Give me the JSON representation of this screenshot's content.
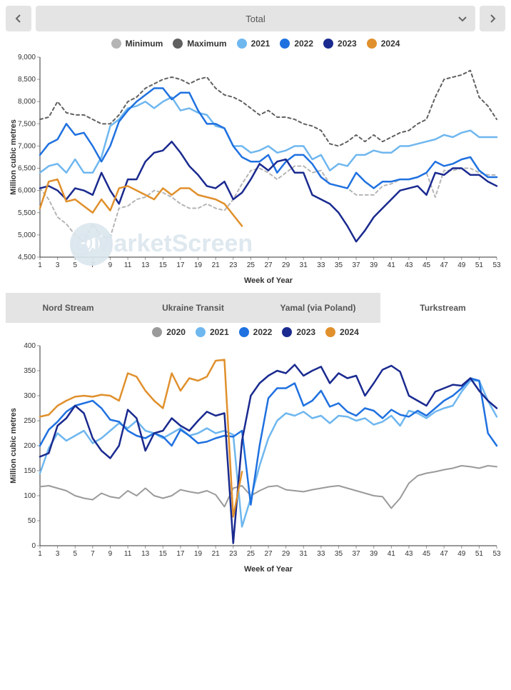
{
  "header": {
    "dropdown_label": "Total"
  },
  "watermark": "@MarketScreen",
  "chart_top": {
    "type": "line",
    "ylabel": "Million cubic metres",
    "xlabel": "Week of Year",
    "ylim": [
      4500,
      9000
    ],
    "ytick_step": 500,
    "xlim": [
      1,
      53
    ],
    "xtick_step": 2,
    "background_color": "#ffffff",
    "grid_color": "#e0e0e0",
    "label_fontsize": 11,
    "tick_fontsize": 10,
    "legend_items": [
      {
        "label": "Minimum",
        "color": "#b5b5b5"
      },
      {
        "label": "Maximum",
        "color": "#606060"
      },
      {
        "label": "2021",
        "color": "#6fb7ef"
      },
      {
        "label": "2022",
        "color": "#1f71e0"
      },
      {
        "label": "2023",
        "color": "#1a2a8f"
      },
      {
        "label": "2024",
        "color": "#e0902c"
      }
    ],
    "series": {
      "minimum": {
        "color": "#b5b5b5",
        "dash": "4,4",
        "width": 2,
        "values": [
          6050,
          5800,
          5400,
          5250,
          5000,
          4850,
          5250,
          4950,
          4950,
          5600,
          5650,
          5800,
          5850,
          6000,
          5950,
          5850,
          5700,
          5600,
          5600,
          5700,
          5600,
          5550,
          5800,
          6150,
          6450,
          6500,
          6400,
          6250,
          6400,
          6550,
          6550,
          6400,
          6450,
          6150,
          6100,
          6050,
          5900,
          5900,
          5900,
          6100,
          6150,
          6250,
          6250,
          6300,
          6400,
          5850,
          6450,
          6450,
          6500,
          6500,
          6400,
          6350,
          6350
        ]
      },
      "maximum": {
        "color": "#606060",
        "dash": "4,4",
        "width": 2,
        "values": [
          7600,
          7650,
          8000,
          7750,
          7700,
          7700,
          7600,
          7500,
          7500,
          7700,
          8000,
          8100,
          8300,
          8400,
          8500,
          8550,
          8500,
          8400,
          8500,
          8550,
          8300,
          8150,
          8100,
          8000,
          7850,
          7700,
          7800,
          7650,
          7650,
          7600,
          7500,
          7450,
          7350,
          7050,
          7000,
          7100,
          7250,
          7100,
          7250,
          7100,
          7200,
          7300,
          7350,
          7500,
          7600,
          8100,
          8500,
          8550,
          8600,
          8700,
          8100,
          7900,
          7600
        ]
      },
      "y2021": {
        "color": "#6fb7ef",
        "dash": null,
        "width": 2.5,
        "values": [
          6400,
          6550,
          6600,
          6400,
          6700,
          6400,
          6400,
          6750,
          7450,
          7600,
          7850,
          7900,
          8000,
          7850,
          8000,
          8100,
          7800,
          7850,
          7750,
          7700,
          7450,
          7400,
          7000,
          7000,
          6850,
          6900,
          7000,
          6850,
          6900,
          7000,
          7000,
          6700,
          6800,
          6450,
          6600,
          6550,
          6800,
          6800,
          6900,
          6850,
          6850,
          7000,
          7000,
          7050,
          7100,
          7150,
          7250,
          7200,
          7300,
          7350,
          7200,
          7200,
          7200
        ]
      },
      "y2022": {
        "color": "#1f71e0",
        "dash": null,
        "width": 2.5,
        "values": [
          6800,
          7050,
          7150,
          7500,
          7250,
          7300,
          7000,
          6650,
          7000,
          7550,
          7800,
          8000,
          8150,
          8300,
          8300,
          8050,
          8200,
          8200,
          7800,
          7500,
          7500,
          7400,
          7000,
          6750,
          6650,
          6650,
          6800,
          6400,
          6650,
          6800,
          6800,
          6600,
          6300,
          6150,
          6100,
          6050,
          6400,
          6200,
          6050,
          6200,
          6200,
          6250,
          6250,
          6300,
          6400,
          6650,
          6550,
          6600,
          6700,
          6750,
          6450,
          6300,
          6300
        ]
      },
      "y2023": {
        "color": "#1a2a8f",
        "dash": null,
        "width": 2.5,
        "values": [
          6050,
          6100,
          6000,
          5800,
          6050,
          6000,
          5900,
          6400,
          6000,
          5700,
          6250,
          6250,
          6650,
          6850,
          6900,
          7100,
          6850,
          6550,
          6350,
          6100,
          6050,
          6200,
          5800,
          5950,
          6250,
          6600,
          6450,
          6650,
          6700,
          6400,
          6400,
          5900,
          5800,
          5700,
          5500,
          5200,
          4850,
          5100,
          5400,
          5600,
          5800,
          6000,
          6050,
          6100,
          5900,
          6400,
          6350,
          6500,
          6500,
          6350,
          6350,
          6200,
          6100
        ]
      },
      "y2024": {
        "color": "#e0902c",
        "dash": null,
        "width": 2.5,
        "values": [
          5600,
          6200,
          6250,
          5750,
          5800,
          5650,
          5500,
          5800,
          5550,
          6050,
          6100,
          6000,
          5900,
          5800,
          6050,
          5900,
          6050,
          6050,
          5900,
          5850,
          5800,
          5700,
          5450,
          5200
        ]
      }
    }
  },
  "tabs": {
    "items": [
      {
        "label": "Nord Stream",
        "active": false
      },
      {
        "label": "Ukraine Transit",
        "active": false
      },
      {
        "label": "Yamal (via Poland)",
        "active": false
      },
      {
        "label": "Turkstream",
        "active": true
      }
    ]
  },
  "chart_bottom": {
    "type": "line",
    "ylabel": "Million cubic metres",
    "xlabel": "Week of Year",
    "ylim": [
      0,
      400
    ],
    "ytick_step": 50,
    "xlim": [
      1,
      53
    ],
    "xtick_step": 2,
    "background_color": "#ffffff",
    "grid_color": "#e0e0e0",
    "label_fontsize": 11,
    "tick_fontsize": 10,
    "legend_items": [
      {
        "label": "2020",
        "color": "#9a9a9a"
      },
      {
        "label": "2021",
        "color": "#6fb7ef"
      },
      {
        "label": "2022",
        "color": "#1f71e0"
      },
      {
        "label": "2023",
        "color": "#1a2a8f"
      },
      {
        "label": "2024",
        "color": "#e0902c"
      }
    ],
    "series": {
      "y2020": {
        "color": "#9a9a9a",
        "dash": null,
        "width": 2,
        "values": [
          118,
          120,
          115,
          110,
          100,
          95,
          92,
          105,
          98,
          95,
          110,
          100,
          115,
          100,
          95,
          100,
          112,
          108,
          105,
          110,
          102,
          78,
          115,
          120,
          100,
          110,
          118,
          120,
          112,
          110,
          108,
          112,
          115,
          118,
          120,
          115,
          110,
          105,
          100,
          98,
          75,
          95,
          125,
          140,
          145,
          148,
          152,
          155,
          160,
          158,
          155,
          160,
          158
        ]
      },
      "y2021": {
        "color": "#6fb7ef",
        "dash": null,
        "width": 2.5,
        "values": [
          145,
          195,
          225,
          210,
          220,
          230,
          205,
          215,
          230,
          245,
          235,
          250,
          230,
          225,
          215,
          225,
          235,
          220,
          225,
          235,
          225,
          230,
          222,
          38,
          95,
          160,
          215,
          250,
          265,
          260,
          268,
          255,
          260,
          245,
          260,
          258,
          250,
          255,
          242,
          248,
          260,
          240,
          270,
          265,
          255,
          268,
          275,
          280,
          308,
          330,
          330,
          290,
          258
        ]
      },
      "y2022": {
        "color": "#1f71e0",
        "dash": null,
        "width": 2.5,
        "values": [
          200,
          232,
          248,
          268,
          280,
          285,
          290,
          275,
          252,
          248,
          230,
          220,
          215,
          225,
          218,
          200,
          232,
          220,
          205,
          208,
          215,
          220,
          218,
          230,
          82,
          200,
          295,
          315,
          315,
          325,
          280,
          290,
          310,
          278,
          285,
          268,
          260,
          275,
          270,
          255,
          272,
          262,
          258,
          270,
          260,
          275,
          290,
          300,
          315,
          335,
          330,
          225,
          200
        ]
      },
      "y2023": {
        "color": "#1a2a8f",
        "dash": null,
        "width": 2.5,
        "values": [
          178,
          185,
          240,
          255,
          280,
          265,
          215,
          190,
          175,
          200,
          272,
          255,
          190,
          225,
          230,
          255,
          240,
          230,
          250,
          268,
          260,
          265,
          5,
          210,
          300,
          325,
          340,
          350,
          345,
          362,
          340,
          350,
          358,
          325,
          345,
          335,
          340,
          300,
          325,
          352,
          360,
          348,
          300,
          290,
          280,
          308,
          315,
          322,
          320,
          335,
          310,
          290,
          275
        ]
      },
      "y2024": {
        "color": "#e0902c",
        "dash": null,
        "width": 2.5,
        "values": [
          258,
          262,
          280,
          290,
          298,
          300,
          298,
          302,
          300,
          290,
          345,
          338,
          310,
          290,
          275,
          345,
          310,
          335,
          330,
          338,
          370,
          372,
          58,
          148
        ]
      }
    }
  }
}
